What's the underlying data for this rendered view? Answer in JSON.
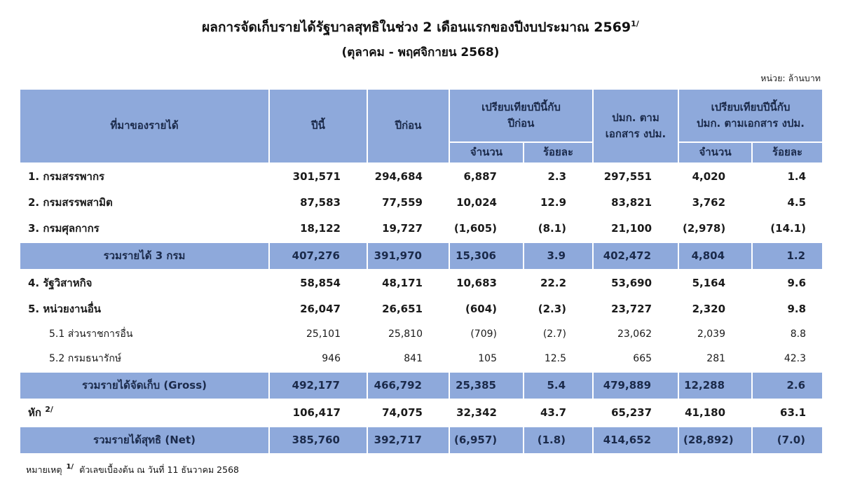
{
  "title": {
    "text": "ผลการจัดเก็บรายได้รัฐบาลสุทธิในช่วง 2 เดือนแรกของปีงบประมาณ  2569",
    "superscript": "1/",
    "subtitle": "(ตุลาคม - พฤศจิกายน 2568)"
  },
  "unit_label": "หน่วย: ล้านบาท",
  "colors": {
    "header_fill": "#8ea9db",
    "header_text": "#1b2a4a"
  },
  "table": {
    "headers": {
      "source": "ที่มาของรายได้",
      "this_year": "ปีนี้",
      "last_year": "ปีก่อน",
      "compare_last_year_group": "เปรียบเทียบปีนี้กับ\nปีก่อน",
      "budget_doc": "ปมก. ตาม\nเอกสาร งปม.",
      "compare_budget_group": "เปรียบเทียบปีนี้กับ\nปมก. ตามเอกสาร งปม.",
      "amount1": "จำนวน",
      "percent1": "ร้อยละ",
      "amount2": "จำนวน",
      "percent2": "ร้อยละ"
    },
    "rows": [
      {
        "label": "1. กรมสรรพากร",
        "type": "main",
        "values": [
          "301,571",
          "294,684",
          "6,887",
          "2.3",
          "297,551",
          "4,020",
          "1.4"
        ]
      },
      {
        "label": "2. กรมสรรพสามิต",
        "type": "main",
        "values": [
          "87,583",
          "77,559",
          "10,024",
          "12.9",
          "83,821",
          "3,762",
          "4.5"
        ]
      },
      {
        "label": "3. กรมศุลกากร",
        "type": "main",
        "values": [
          "18,122",
          "19,727",
          "(1,605)",
          "(8.1)",
          "21,100",
          "(2,978)",
          "(14.1)"
        ]
      },
      {
        "label": "รวมรายได้ 3 กรม",
        "type": "total",
        "values": [
          "407,276",
          "391,970",
          "15,306",
          "3.9",
          "402,472",
          "4,804",
          "1.2"
        ]
      },
      {
        "label": "4. รัฐวิสาหกิจ",
        "type": "main",
        "values": [
          "58,854",
          "48,171",
          "10,683",
          "22.2",
          "53,690",
          "5,164",
          "9.6"
        ]
      },
      {
        "label": "5. หน่วยงานอื่น",
        "type": "main",
        "values": [
          "26,047",
          "26,651",
          "(604)",
          "(2.3)",
          "23,727",
          "2,320",
          "9.8"
        ]
      },
      {
        "label": "5.1 ส่วนราชการอื่น",
        "type": "sub",
        "values": [
          "25,101",
          "25,810",
          "(709)",
          "(2.7)",
          "23,062",
          "2,039",
          "8.8"
        ]
      },
      {
        "label": "5.2 กรมธนารักษ์",
        "type": "sub",
        "values": [
          "946",
          "841",
          "105",
          "12.5",
          "665",
          "281",
          "42.3"
        ]
      },
      {
        "label": "รวมรายได้จัดเก็บ (Gross)",
        "type": "total",
        "values": [
          "492,177",
          "466,792",
          "25,385",
          "5.4",
          "479,889",
          "12,288",
          "2.6"
        ]
      },
      {
        "label": "หัก",
        "sup": "2/",
        "type": "main",
        "values": [
          "106,417",
          "74,075",
          "32,342",
          "43.7",
          "65,237",
          "41,180",
          "63.1"
        ]
      },
      {
        "label": "รวมรายได้สุทธิ (Net)",
        "type": "total",
        "values": [
          "385,760",
          "392,717",
          "(6,957)",
          "(1.8)",
          "414,652",
          "(28,892)",
          "(7.0)"
        ]
      }
    ]
  },
  "footnote": {
    "label": "หมายเหตุ",
    "superscript": "1/",
    "text": "ตัวเลขเบื้องต้น ณ วันที่ 11 ธันวาคม 2568"
  }
}
